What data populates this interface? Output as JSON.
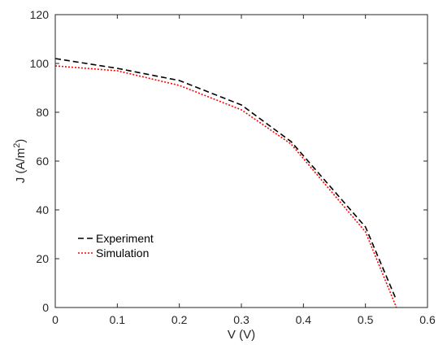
{
  "chart_data": {
    "type": "line",
    "xlabel": "V (V)",
    "ylabel": {
      "base": "J (A/m",
      "sup": "2",
      "end": ")"
    },
    "xlim": [
      0,
      0.6
    ],
    "ylim": [
      0,
      120
    ],
    "xticks": [
      0,
      0.1,
      0.2,
      0.3,
      0.4,
      0.5,
      0.6
    ],
    "yticks": [
      0,
      20,
      40,
      60,
      80,
      100,
      120
    ],
    "xtick_labels": [
      "0",
      "0.1",
      "0.2",
      "0.3",
      "0.4",
      "0.5",
      "0.6"
    ],
    "ytick_labels": [
      "0",
      "20",
      "40",
      "60",
      "80",
      "100",
      "120"
    ],
    "grid": false,
    "legend_position": "lower-left",
    "series": [
      {
        "name": "Experiment",
        "color": "#000000",
        "style": "dashed",
        "x": [
          0,
          0.1,
          0.2,
          0.3,
          0.38,
          0.5,
          0.55
        ],
        "y": [
          102,
          98,
          93,
          83,
          68,
          33,
          3
        ]
      },
      {
        "name": "Simulation",
        "color": "#ff0000",
        "style": "dotted",
        "x": [
          0,
          0.1,
          0.2,
          0.3,
          0.38,
          0.5,
          0.55
        ],
        "y": [
          99,
          97,
          91,
          81,
          67,
          31,
          0
        ]
      }
    ]
  }
}
